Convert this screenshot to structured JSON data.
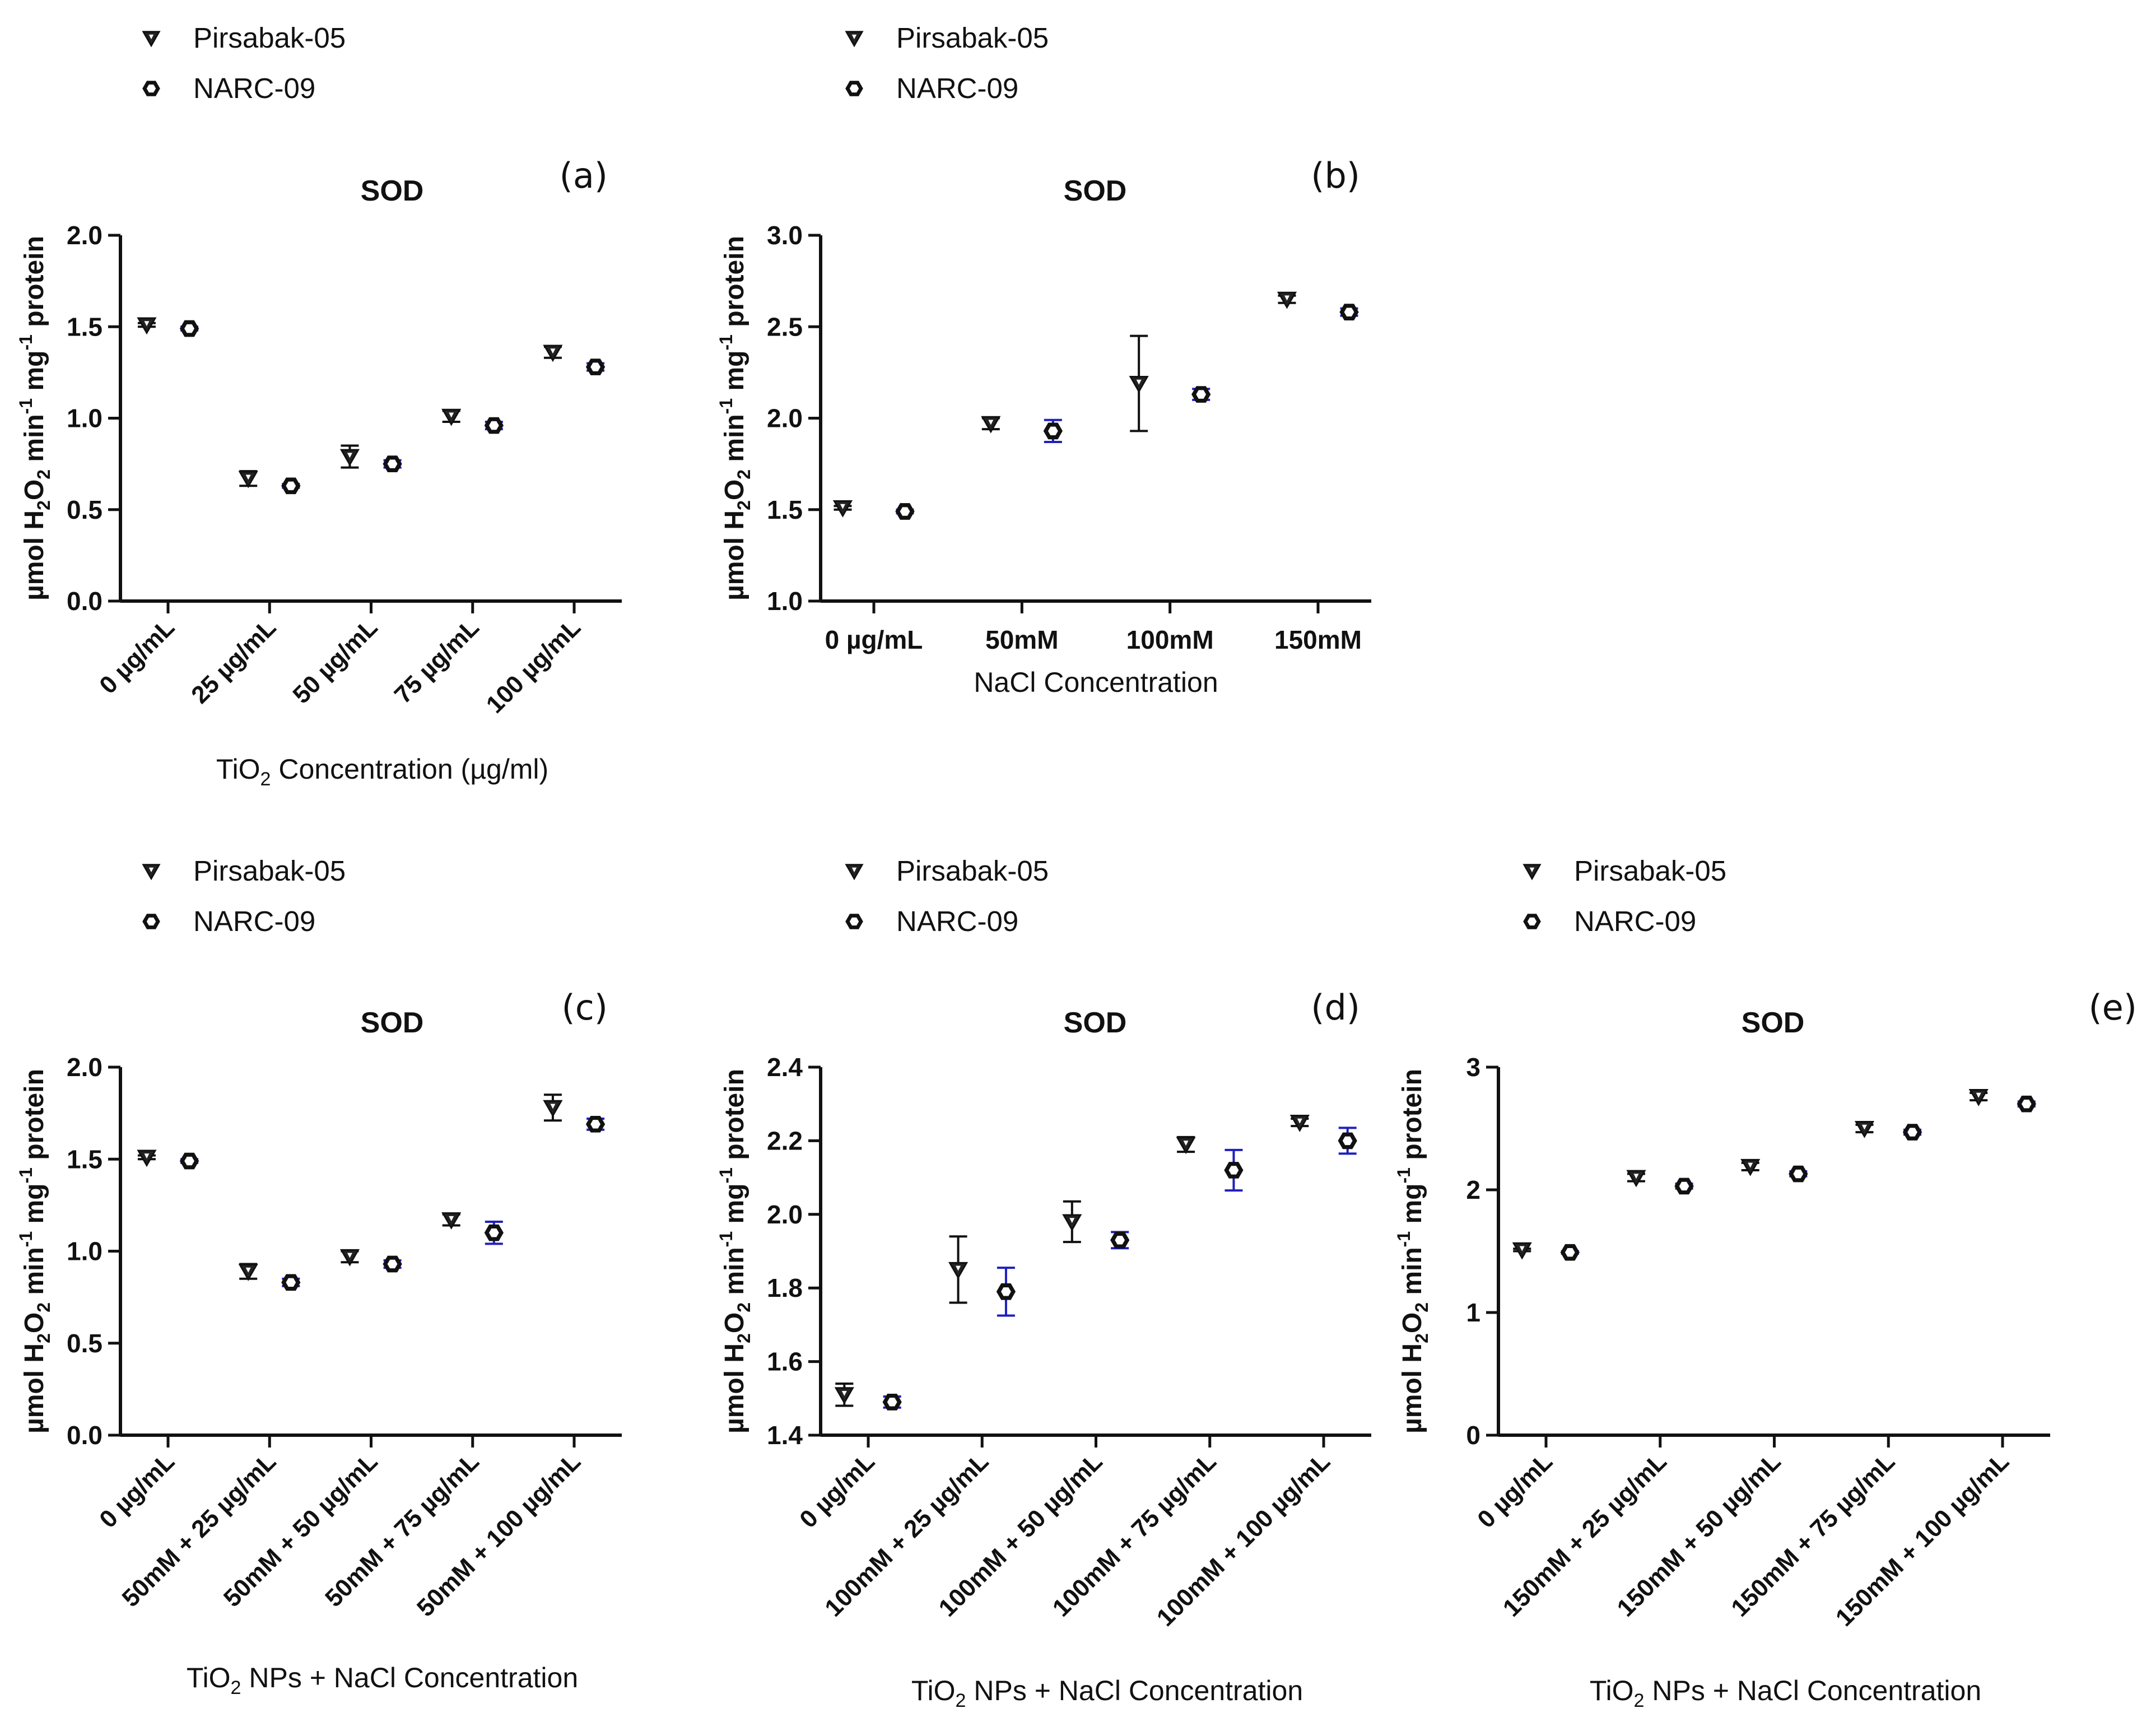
{
  "chart_data": [
    {
      "id": "a",
      "type": "scatter",
      "panel_label": "(a)",
      "title": "SOD",
      "ylabel": "µmol H2O2 min-1 mg-1 protein",
      "xlabel": "TiO2  Concentration (µg/ml)",
      "xlabel_parts": [
        "TiO",
        "2",
        "  Concentration (µg/ml)"
      ],
      "categories": [
        "0 µg/mL",
        "25 µg/mL",
        "50 µg/mL",
        "75 µg/mL",
        "100 µg/mL"
      ],
      "ylim": [
        0,
        2.0
      ],
      "yticks": [
        0.0,
        0.5,
        1.0,
        1.5,
        2.0
      ],
      "ytick_labels": [
        "0.0",
        "0.5",
        "1.0",
        "1.5",
        "2.0"
      ],
      "legend": [
        "Pirsabak-05",
        "NARC-09"
      ],
      "series": [
        {
          "name": "Pirsabak-05",
          "marker": "triangle-down",
          "err_color": "#111111",
          "values": [
            1.51,
            0.67,
            0.79,
            1.01,
            1.36
          ],
          "errors": [
            0.01,
            0.04,
            0.06,
            0.03,
            0.03
          ]
        },
        {
          "name": "NARC-09",
          "marker": "hexagon",
          "err_color": "#1f1fbf",
          "values": [
            1.49,
            0.63,
            0.75,
            0.96,
            1.28
          ],
          "errors": [
            0.01,
            0.01,
            0.02,
            0.02,
            0.02
          ]
        }
      ]
    },
    {
      "id": "b",
      "type": "scatter",
      "panel_label": "(b)",
      "title": "SOD",
      "ylabel": "µmol H2O2 min-1 mg-1 protein",
      "xlabel": "NaCl  Concentration",
      "xlabel_parts": [
        "NaCl  Concentration"
      ],
      "categories": [
        "0 µg/mL",
        "50mM",
        "100mM",
        "150mM"
      ],
      "ylim": [
        1.0,
        3.0
      ],
      "yticks": [
        1.0,
        1.5,
        2.0,
        2.5,
        3.0
      ],
      "ytick_labels": [
        "1.0",
        "1.5",
        "2.0",
        "2.5",
        "3.0"
      ],
      "legend": [
        "Pirsabak-05",
        "NARC-09"
      ],
      "series": [
        {
          "name": "Pirsabak-05",
          "marker": "triangle-down",
          "err_color": "#111111",
          "values": [
            1.51,
            1.97,
            2.19,
            2.65
          ],
          "errors": [
            0.01,
            0.03,
            0.26,
            0.02
          ]
        },
        {
          "name": "NARC-09",
          "marker": "hexagon",
          "err_color": "#1f1fbf",
          "values": [
            1.49,
            1.93,
            2.13,
            2.58
          ],
          "errors": [
            0.01,
            0.06,
            0.03,
            0.02
          ]
        }
      ]
    },
    {
      "id": "c",
      "type": "scatter",
      "panel_label": "(c)",
      "title": "SOD",
      "ylabel": "µmol H2O2 min-1 mg-1 protein",
      "xlabel": "TiO2  NPs + NaCl  Concentration",
      "xlabel_parts": [
        "TiO",
        "2",
        "  NPs + NaCl  Concentration"
      ],
      "categories": [
        "0 µg/mL",
        "50mM + 25 µg/mL",
        "50mM + 50 µg/mL",
        "50mM + 75 µg/mL",
        "50mM + 100 µg/mL"
      ],
      "ylim": [
        0,
        2.0
      ],
      "yticks": [
        0.0,
        0.5,
        1.0,
        1.5,
        2.0
      ],
      "ytick_labels": [
        "0.0",
        "0.5",
        "1.0",
        "1.5",
        "2.0"
      ],
      "legend": [
        "Pirsabak-05",
        "NARC-09"
      ],
      "series": [
        {
          "name": "Pirsabak-05",
          "marker": "triangle-down",
          "err_color": "#111111",
          "values": [
            1.51,
            0.89,
            0.97,
            1.17,
            1.78
          ],
          "errors": [
            0.01,
            0.04,
            0.03,
            0.03,
            0.07
          ]
        },
        {
          "name": "NARC-09",
          "marker": "hexagon",
          "err_color": "#1f1fbf",
          "values": [
            1.49,
            0.83,
            0.93,
            1.1,
            1.69
          ],
          "errors": [
            0.01,
            0.02,
            0.02,
            0.06,
            0.03
          ]
        }
      ]
    },
    {
      "id": "d",
      "type": "scatter",
      "panel_label": "(d)",
      "title": "SOD",
      "ylabel": "µmol H2O2 min-1 mg-1 protein",
      "xlabel": "TiO2  NPs + NaCl  Concentration",
      "xlabel_parts": [
        "TiO",
        "2",
        "  NPs + NaCl  Concentration"
      ],
      "categories": [
        "0 µg/mL",
        "100mM + 25 µg/mL",
        "100mM + 50 µg/mL",
        "100mM + 75 µg/mL",
        "100mM + 100 µg/mL"
      ],
      "ylim": [
        1.4,
        2.4
      ],
      "yticks": [
        1.4,
        1.6,
        1.8,
        2.0,
        2.2,
        2.4
      ],
      "ytick_labels": [
        "1.4",
        "1.6",
        "1.8",
        "2.0",
        "2.2",
        "2.4"
      ],
      "legend": [
        "Pirsabak-05",
        "NARC-09"
      ],
      "series": [
        {
          "name": "Pirsabak-05",
          "marker": "triangle-down",
          "err_color": "#111111",
          "values": [
            1.51,
            1.85,
            1.98,
            2.19,
            2.25
          ],
          "errors": [
            0.03,
            0.09,
            0.055,
            0.02,
            0.01
          ]
        },
        {
          "name": "NARC-09",
          "marker": "hexagon",
          "err_color": "#1f1fbf",
          "values": [
            1.49,
            1.79,
            1.93,
            2.12,
            2.2
          ],
          "errors": [
            0.015,
            0.065,
            0.022,
            0.055,
            0.035
          ]
        }
      ]
    },
    {
      "id": "e",
      "type": "scatter",
      "panel_label": "(e)",
      "title": "SOD",
      "ylabel": "µmol H2O2 min-1 mg-1 protein",
      "xlabel": "TiO2  NPs + NaCl  Concentration",
      "xlabel_parts": [
        "TiO",
        "2",
        "  NPs + NaCl  Concentration"
      ],
      "categories": [
        "0 µg/mL",
        "150mM + 25 µg/mL",
        "150mM + 50 µg/mL",
        "150mM + 75 µg/mL",
        "150mM + 100 µg/mL"
      ],
      "ylim": [
        0,
        3
      ],
      "yticks": [
        0,
        1,
        2,
        3
      ],
      "ytick_labels": [
        "0",
        "1",
        "2",
        "3"
      ],
      "legend": [
        "Pirsabak-05",
        "NARC-09"
      ],
      "series": [
        {
          "name": "Pirsabak-05",
          "marker": "triangle-down",
          "err_color": "#111111",
          "values": [
            1.51,
            2.1,
            2.19,
            2.5,
            2.76
          ],
          "errors": [
            0.01,
            0.03,
            0.03,
            0.03,
            0.03
          ]
        },
        {
          "name": "NARC-09",
          "marker": "hexagon",
          "err_color": "#1f1fbf",
          "values": [
            1.49,
            2.03,
            2.13,
            2.47,
            2.7
          ],
          "errors": [
            0.01,
            0.02,
            0.02,
            0.02,
            0.02
          ]
        }
      ]
    }
  ]
}
